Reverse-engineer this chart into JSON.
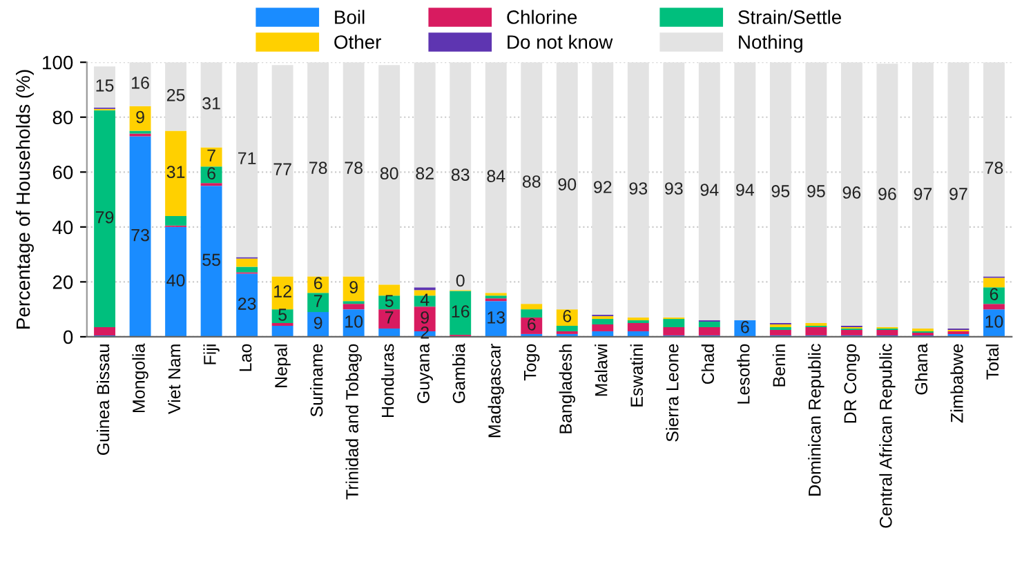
{
  "chart_data": {
    "type": "bar",
    "stacked": true,
    "ylabel": "Percentage of Households (%)",
    "ylim": [
      0,
      100
    ],
    "yticks": [
      0,
      20,
      40,
      60,
      80,
      100
    ],
    "grid": "y",
    "legend": "top",
    "categories": [
      "Guinea Bissau",
      "Mongolia",
      "Viet Nam",
      "Fiji",
      "Lao",
      "Nepal",
      "Suriname",
      "Trinidad and Tobago",
      "Honduras",
      "Guyana",
      "Gambia",
      "Madagascar",
      "Togo",
      "Bangladesh",
      "Malawi",
      "Eswatini",
      "Sierra Leone",
      "Chad",
      "Lesotho",
      "Benin",
      "Dominican Republic",
      "DR Congo",
      "Central African Republic",
      "Ghana",
      "Zimbabwe",
      "Total"
    ],
    "series": [
      {
        "name": "Boil",
        "color": "#1a8cff",
        "values": [
          0.5,
          73,
          40,
          55,
          23,
          4,
          9,
          10,
          3,
          2,
          0,
          13,
          1,
          1,
          2,
          2,
          0.5,
          0.5,
          6,
          0.5,
          0.5,
          0.5,
          0.5,
          0.5,
          1,
          10
        ],
        "value_labels": [
          null,
          "73",
          "40",
          "55",
          "23",
          null,
          "9",
          "10",
          null,
          "2",
          null,
          "13",
          null,
          null,
          null,
          null,
          null,
          null,
          "6",
          null,
          null,
          null,
          null,
          null,
          null,
          "10"
        ]
      },
      {
        "name": "Chlorine",
        "color": "#d81b60",
        "values": [
          3,
          1,
          0.5,
          1,
          0.5,
          1,
          0,
          2,
          7,
          9,
          0.7,
          1,
          6,
          1,
          2.5,
          3,
          3,
          3,
          0,
          2,
          3,
          2,
          2,
          1,
          1,
          2
        ],
        "value_labels": [
          null,
          null,
          null,
          null,
          null,
          null,
          null,
          null,
          "7",
          "9",
          null,
          null,
          "6",
          null,
          null,
          null,
          null,
          null,
          null,
          null,
          null,
          null,
          null,
          null,
          null,
          null
        ]
      },
      {
        "name": "Strain/Settle",
        "color": "#00bf7d",
        "values": [
          79,
          1,
          3.5,
          6,
          2,
          5,
          7,
          1,
          5,
          4,
          16,
          1,
          3,
          2,
          2,
          1,
          3,
          2,
          0,
          1,
          0.5,
          0.5,
          0.5,
          0.5,
          0,
          6
        ],
        "value_labels": [
          "79",
          null,
          null,
          "6",
          null,
          "5",
          "7",
          null,
          "5",
          "4",
          "16",
          null,
          null,
          null,
          null,
          null,
          null,
          null,
          null,
          null,
          null,
          null,
          null,
          null,
          null,
          "6"
        ]
      },
      {
        "name": "Other",
        "color": "#ffd000",
        "values": [
          0.5,
          9,
          31,
          7,
          3,
          12,
          6,
          9,
          4,
          2,
          0.3,
          1,
          2,
          6,
          1,
          1,
          0.5,
          0,
          0,
          1,
          1,
          0.5,
          0.5,
          1,
          0.5,
          3.5
        ],
        "value_labels": [
          null,
          "9",
          "31",
          "7",
          null,
          "12",
          "6",
          "9",
          null,
          null,
          "0",
          null,
          null,
          "6",
          null,
          null,
          null,
          null,
          null,
          null,
          null,
          null,
          null,
          null,
          null,
          null
        ]
      },
      {
        "name": "Do not know",
        "color": "#5e35b1",
        "values": [
          0.5,
          0,
          0,
          0,
          0.5,
          0,
          0,
          0,
          0,
          1,
          0,
          0,
          0,
          0,
          0.5,
          0,
          0,
          0.5,
          0,
          0.5,
          0,
          0.5,
          0,
          0,
          0.5,
          0.5
        ]
      },
      {
        "name": "Nothing",
        "color": "#e3e3e3",
        "values": [
          15,
          16,
          25,
          31,
          71,
          77,
          78,
          78,
          80,
          82,
          83,
          84,
          88,
          90,
          92,
          93,
          93,
          94,
          94,
          95,
          95,
          96,
          96,
          97,
          97,
          78
        ],
        "value_labels": [
          "15",
          "16",
          "25",
          "31",
          "71",
          "77",
          "78",
          "78",
          "80",
          "82",
          "83",
          "84",
          "88",
          "90",
          "92",
          "93",
          "93",
          "94",
          "94",
          "95",
          "95",
          "96",
          "96",
          "97",
          "97",
          "78"
        ]
      }
    ]
  }
}
